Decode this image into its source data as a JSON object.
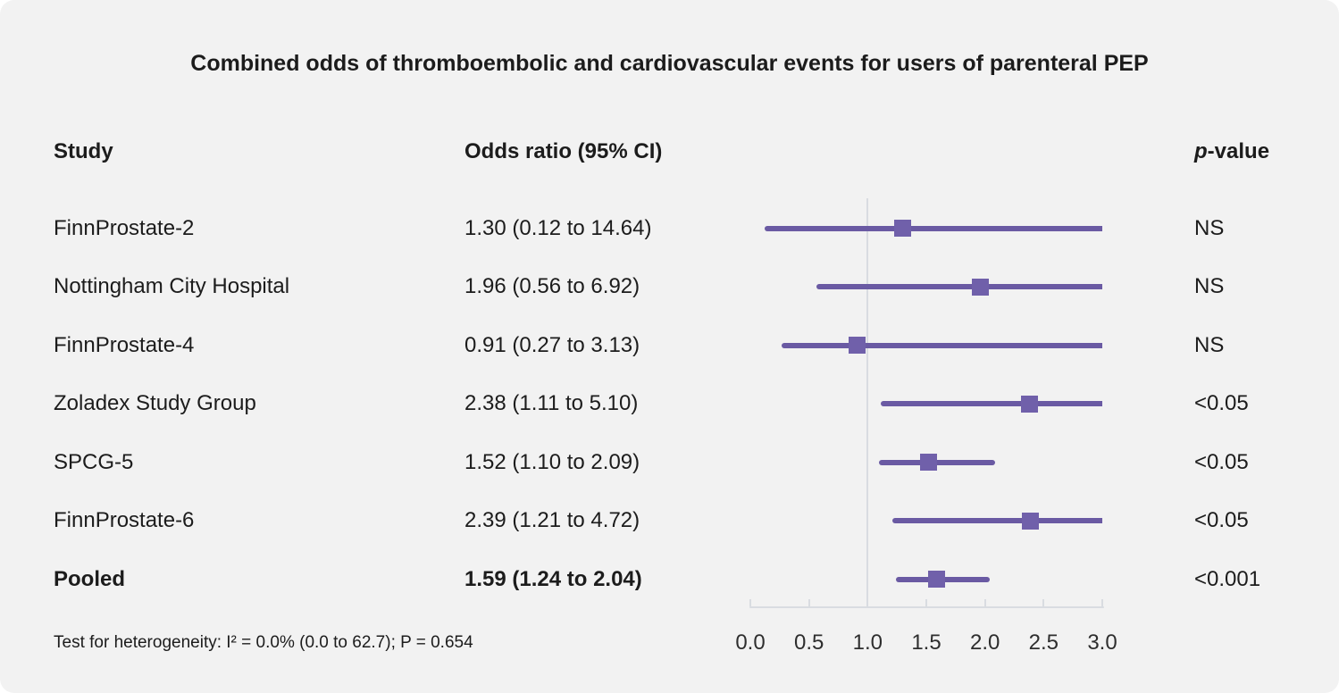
{
  "title": "Combined odds of thromboembolic and cardiovascular events for users of parenteral PEP",
  "columns": {
    "study": "Study",
    "odds_ratio": "Odds ratio (95% CI)",
    "p_value_italic": "p",
    "p_value_rest": "-value"
  },
  "footer": "Test for heterogeneity: I² = 0.0% (0.0 to 62.7); P = 0.654",
  "colors": {
    "background": "#f2f2f2",
    "ci_line": "#6a5aa3",
    "marker": "#7060aa",
    "axis": "#d9dce1",
    "text": "#1c1c1c"
  },
  "chart_data": {
    "type": "scatter",
    "variant": "forest-plot",
    "title": "Combined odds of thromboembolic and cardiovascular events for users of parenteral PEP",
    "xlabel": "Odds ratio",
    "xlim": [
      0,
      3
    ],
    "x_tick_values": [
      0,
      0.5,
      1,
      1.5,
      2,
      2.5,
      3
    ],
    "x_tick_labels": [
      "0.0",
      "0.5",
      "1.0",
      "1.5",
      "2.0",
      "2.5",
      "3.0"
    ],
    "reference_line_x": 1.0,
    "grid": false,
    "legend": "none",
    "studies": [
      {
        "study": "FinnProstate-2",
        "or_text": "1.30 (0.12 to 14.64)",
        "estimate": 1.3,
        "lower": 0.12,
        "upper": 14.64,
        "p": "NS",
        "bold": false
      },
      {
        "study": "Nottingham City Hospital",
        "or_text": "1.96 (0.56 to 6.92)",
        "estimate": 1.96,
        "lower": 0.56,
        "upper": 6.92,
        "p": "NS",
        "bold": false
      },
      {
        "study": "FinnProstate-4",
        "or_text": "0.91 (0.27 to 3.13)",
        "estimate": 0.91,
        "lower": 0.27,
        "upper": 3.13,
        "p": "NS",
        "bold": false
      },
      {
        "study": "Zoladex Study Group",
        "or_text": "2.38 (1.11 to 5.10)",
        "estimate": 2.38,
        "lower": 1.11,
        "upper": 5.1,
        "p": "<0.05",
        "bold": false
      },
      {
        "study": "SPCG-5",
        "or_text": "1.52 (1.10 to 2.09)",
        "estimate": 1.52,
        "lower": 1.1,
        "upper": 2.09,
        "p": "<0.05",
        "bold": false
      },
      {
        "study": "FinnProstate-6",
        "or_text": "2.39 (1.21 to 4.72)",
        "estimate": 2.39,
        "lower": 1.21,
        "upper": 4.72,
        "p": "<0.05",
        "bold": false
      },
      {
        "study": "Pooled",
        "or_text": "1.59 (1.24 to 2.04)",
        "estimate": 1.59,
        "lower": 1.24,
        "upper": 2.04,
        "p": "<0.001",
        "bold": true
      }
    ],
    "heterogeneity": "Test for heterogeneity: I² = 0.0% (0.0 to 62.7); P = 0.654"
  }
}
